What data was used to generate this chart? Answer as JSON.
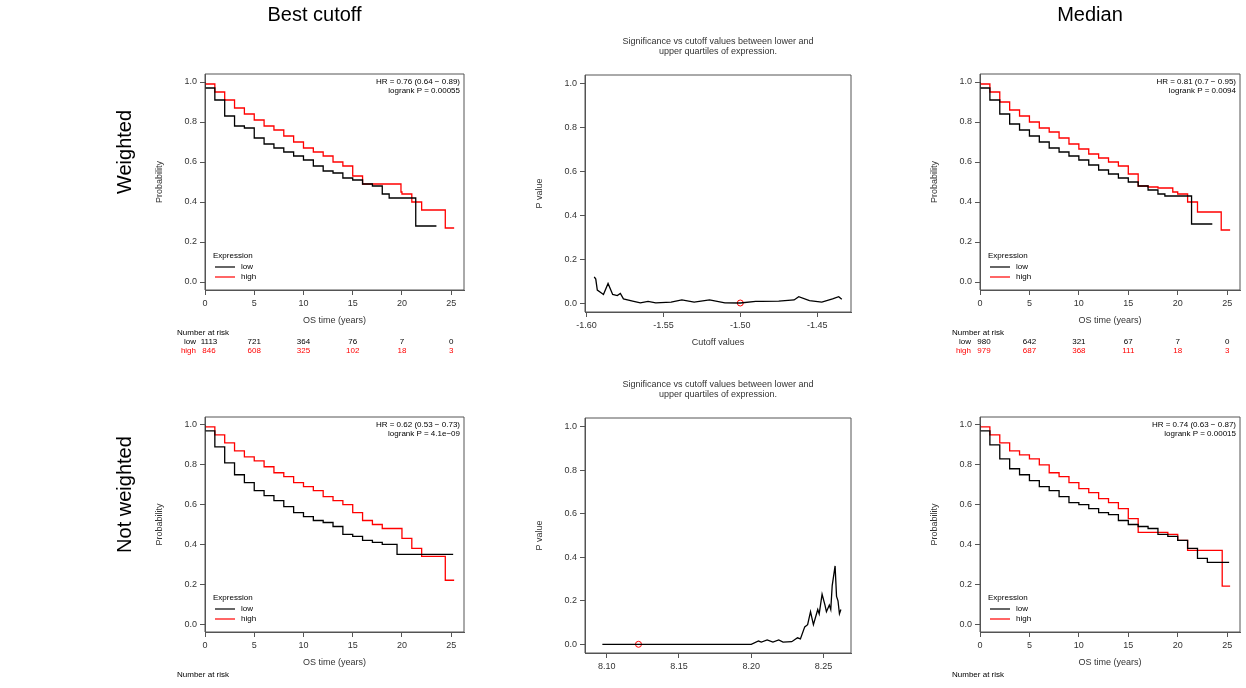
{
  "chart_data": [
    {
      "type": "step",
      "title": "Best cutoff",
      "subtitle": "Weighted",
      "xlabel": "OS time (years)",
      "ylabel": "Probability",
      "legend": "bottom left",
      "legend_title": "Expression",
      "xlim": [
        0,
        26.3
      ],
      "ylim": [
        -0.04,
        1.04
      ],
      "xticks": [
        0,
        5,
        10,
        15,
        20,
        25
      ],
      "yticks": [
        {
          "value": 0,
          "label": "0.0"
        },
        {
          "value": 0.2,
          "label": "0.2"
        },
        {
          "value": 0.4,
          "label": "0.4"
        },
        {
          "value": 0.6,
          "label": "0.6"
        },
        {
          "value": 0.8,
          "label": "0.8"
        },
        {
          "value": 1,
          "label": "1.0"
        }
      ],
      "grid": false,
      "marker": "none",
      "annotations": [
        "HR = 0.76 (0.64 − 0.89)",
        "logrank P = 0.00055",
        "Number at risk",
        "low 1113 721 364 76 7 0",
        "high 846 608 325 102 18 3"
      ],
      "series": [
        {
          "name": "low",
          "color": "#000000",
          "x": [
            0,
            1,
            2,
            3,
            4,
            5,
            6,
            7,
            8,
            9,
            10,
            11,
            12,
            13,
            14,
            15,
            16,
            17,
            18,
            18.7,
            19,
            21.4,
            21.4,
            23.5
          ],
          "values": [
            1,
            0.97,
            0.91,
            0.83,
            0.78,
            0.77,
            0.72,
            0.69,
            0.67,
            0.65,
            0.63,
            0.61,
            0.58,
            0.555,
            0.545,
            0.52,
            0.51,
            0.49,
            0.48,
            0.44,
            0.42,
            0.42,
            0.28,
            0.28
          ]
        },
        {
          "name": "high",
          "color": "#ff0000",
          "x": [
            0,
            1,
            2,
            3,
            4,
            5,
            6,
            7,
            8,
            9,
            10,
            11,
            12,
            13,
            14,
            15,
            16,
            17,
            18,
            19.9,
            20,
            21,
            22,
            23,
            24.4,
            24.4,
            25.3
          ],
          "values": [
            1,
            0.99,
            0.95,
            0.91,
            0.87,
            0.84,
            0.81,
            0.78,
            0.76,
            0.73,
            0.7,
            0.67,
            0.65,
            0.63,
            0.6,
            0.58,
            0.53,
            0.49,
            0.49,
            0.49,
            0.45,
            0.44,
            0.4,
            0.36,
            0.36,
            0.27,
            0.27
          ]
        }
      ]
    },
    {
      "type": "line",
      "title": "Significance vs cutoff values between lower and\nupper quartiles of expression.",
      "xlabel": "Cutoff values",
      "ylabel": "P value",
      "xlim": [
        -1.601,
        -1.428
      ],
      "ylim": [
        -0.04,
        1.04
      ],
      "xticks": [
        {
          "value": -1.6,
          "label": "-1.60"
        },
        {
          "value": -1.55,
          "label": "-1.55"
        },
        {
          "value": -1.5,
          "label": "-1.50"
        },
        {
          "value": -1.45,
          "label": "-1.45"
        }
      ],
      "yticks": [
        {
          "value": 0,
          "label": "0.0"
        },
        {
          "value": 0.2,
          "label": "0.2"
        },
        {
          "value": 0.4,
          "label": "0.4"
        },
        {
          "value": 0.6,
          "label": "0.6"
        },
        {
          "value": 0.8,
          "label": "0.8"
        },
        {
          "value": 1,
          "label": "1.0"
        }
      ],
      "grid": false,
      "series": [
        {
          "color": "#000000",
          "x": [
            -1.595,
            -1.594,
            -1.593,
            -1.591,
            -1.589,
            -1.586,
            -1.583,
            -1.58,
            -1.578,
            -1.576,
            -1.57,
            -1.565,
            -1.56,
            -1.555,
            -1.545,
            -1.538,
            -1.53,
            -1.52,
            -1.51,
            -1.5,
            -1.49,
            -1.475,
            -1.465,
            -1.462,
            -1.455,
            -1.447,
            -1.44,
            -1.436,
            -1.434
          ],
          "values": [
            0.12,
            0.11,
            0.06,
            0.05,
            0.04,
            0.09,
            0.04,
            0.035,
            0.045,
            0.02,
            0.01,
            0.002,
            0.008,
            0.002,
            0.005,
            0.015,
            0.005,
            0.015,
            0.002,
            0.001,
            0.008,
            0.01,
            0.015,
            0.03,
            0.012,
            0.005,
            0.02,
            0.03,
            0.018
          ]
        },
        {
          "type": "scatter",
          "marker": "circle",
          "color": "#ff0000",
          "x": [
            -1.5
          ],
          "values": [
            0.001
          ]
        }
      ]
    },
    {
      "type": "step",
      "title": "Median",
      "xlabel": "OS time (years)",
      "ylabel": "Probability",
      "legend": "bottom left",
      "legend_title": "Expression",
      "xlim": [
        0,
        26.3
      ],
      "ylim": [
        -0.04,
        1.04
      ],
      "xticks": [
        0,
        5,
        10,
        15,
        20,
        25
      ],
      "yticks": [
        {
          "value": 0,
          "label": "0.0"
        },
        {
          "value": 0.2,
          "label": "0.2"
        },
        {
          "value": 0.4,
          "label": "0.4"
        },
        {
          "value": 0.6,
          "label": "0.6"
        },
        {
          "value": 0.8,
          "label": "0.8"
        },
        {
          "value": 1,
          "label": "1.0"
        }
      ],
      "grid": false,
      "marker": "none",
      "annotations": [
        "HR = 0.81 (0.7 − 0.95)",
        "logrank P = 0.0094",
        "Number at risk",
        "low 980 642 321 67 7 0",
        "high 979 687 368 111 18 3"
      ],
      "series": [
        {
          "name": "low",
          "color": "#000000",
          "x": [
            0,
            1,
            2,
            3,
            4,
            5,
            6,
            7,
            8,
            9,
            10,
            11,
            12,
            13,
            14,
            15,
            16,
            17,
            18,
            18.7,
            20.5,
            21.4,
            21.4,
            23.5
          ],
          "values": [
            1,
            0.97,
            0.91,
            0.84,
            0.79,
            0.76,
            0.73,
            0.7,
            0.67,
            0.65,
            0.63,
            0.61,
            0.585,
            0.56,
            0.54,
            0.52,
            0.5,
            0.48,
            0.46,
            0.44,
            0.43,
            0.43,
            0.29,
            0.29
          ]
        },
        {
          "name": "high",
          "color": "#ff0000",
          "x": [
            0,
            1,
            2,
            3,
            4,
            5,
            6,
            7,
            8,
            9,
            10,
            11,
            12,
            13,
            14,
            15,
            16,
            17,
            18,
            19.5,
            20,
            21,
            22,
            23,
            24.4,
            24.4,
            25.3
          ],
          "values": [
            1,
            0.99,
            0.95,
            0.9,
            0.86,
            0.83,
            0.8,
            0.77,
            0.75,
            0.72,
            0.69,
            0.665,
            0.64,
            0.62,
            0.6,
            0.58,
            0.54,
            0.48,
            0.475,
            0.47,
            0.45,
            0.44,
            0.4,
            0.35,
            0.35,
            0.26,
            0.26
          ]
        }
      ]
    },
    {
      "type": "step",
      "subtitle": "Not weighted",
      "xlabel": "OS time (years)",
      "ylabel": "Probability",
      "legend": "bottom left",
      "legend_title": "Expression",
      "xlim": [
        0,
        26.3
      ],
      "ylim": [
        -0.04,
        1.04
      ],
      "xticks": [
        0,
        5,
        10,
        15,
        20,
        25
      ],
      "yticks": [
        {
          "value": 0,
          "label": "0.0"
        },
        {
          "value": 0.2,
          "label": "0.2"
        },
        {
          "value": 0.4,
          "label": "0.4"
        },
        {
          "value": 0.6,
          "label": "0.6"
        },
        {
          "value": 0.8,
          "label": "0.8"
        },
        {
          "value": 1,
          "label": "1.0"
        }
      ],
      "grid": false,
      "marker": "none",
      "annotations": [
        "HR = 0.62 (0.53 − 0.73)",
        "logrank P = 4.1e−09",
        "Number at risk"
      ],
      "series": [
        {
          "name": "low",
          "color": "#000000",
          "x": [
            0,
            1,
            2,
            3,
            4,
            5,
            6,
            7,
            8,
            9,
            10,
            11,
            12,
            13,
            14,
            15,
            16,
            17,
            18,
            19.5,
            20,
            25.2
          ],
          "values": [
            1,
            0.97,
            0.89,
            0.81,
            0.75,
            0.71,
            0.67,
            0.645,
            0.62,
            0.59,
            0.56,
            0.54,
            0.52,
            0.51,
            0.49,
            0.45,
            0.44,
            0.42,
            0.41,
            0.4,
            0.35,
            0.35
          ]
        },
        {
          "name": "high",
          "color": "#ff0000",
          "x": [
            0,
            1,
            2,
            3,
            4,
            5,
            6,
            7,
            8,
            9,
            10,
            11,
            12,
            13,
            14,
            15,
            16,
            17,
            18,
            19,
            20,
            21,
            22,
            23,
            24.4,
            24.4,
            25.3
          ],
          "values": [
            1,
            0.99,
            0.95,
            0.91,
            0.87,
            0.84,
            0.82,
            0.79,
            0.76,
            0.74,
            0.71,
            0.69,
            0.67,
            0.64,
            0.62,
            0.6,
            0.56,
            0.52,
            0.5,
            0.48,
            0.48,
            0.43,
            0.38,
            0.34,
            0.34,
            0.22,
            0.22
          ]
        }
      ]
    },
    {
      "type": "line",
      "title": "Significance vs cutoff values between lower and\nupper quartiles of expression.",
      "ylabel": "P value",
      "xlim": [
        8.085,
        8.269
      ],
      "ylim": [
        -0.04,
        1.04
      ],
      "xticks": [
        {
          "value": 8.1,
          "label": "8.10"
        },
        {
          "value": 8.15,
          "label": "8.15"
        },
        {
          "value": 8.2,
          "label": "8.20"
        },
        {
          "value": 8.25,
          "label": "8.25"
        }
      ],
      "yticks": [
        {
          "value": 0,
          "label": "0.0"
        },
        {
          "value": 0.2,
          "label": "0.2"
        },
        {
          "value": 0.4,
          "label": "0.4"
        },
        {
          "value": 0.6,
          "label": "0.6"
        },
        {
          "value": 0.8,
          "label": "0.8"
        },
        {
          "value": 1,
          "label": "1.0"
        }
      ],
      "grid": false,
      "series": [
        {
          "color": "#000000",
          "x": [
            8.097,
            8.2,
            8.205,
            8.207,
            8.211,
            8.215,
            8.219,
            8.222,
            8.228,
            8.232,
            8.234,
            8.237,
            8.239,
            8.241,
            8.243,
            8.246,
            8.247,
            8.249,
            8.251,
            8.252,
            8.254,
            8.255,
            8.256,
            8.258,
            8.259,
            8.26,
            8.261,
            8.262
          ],
          "values": [
            0,
            0,
            0.015,
            0.01,
            0.02,
            0.01,
            0.02,
            0.01,
            0.012,
            0.03,
            0.025,
            0.08,
            0.09,
            0.15,
            0.09,
            0.16,
            0.14,
            0.23,
            0.18,
            0.15,
            0.18,
            0.16,
            0.27,
            0.36,
            0.22,
            0.2,
            0.14,
            0.16
          ]
        },
        {
          "type": "scatter",
          "marker": "circle",
          "color": "#ff0000",
          "x": [
            8.122
          ],
          "values": [
            0
          ]
        }
      ]
    },
    {
      "type": "step",
      "xlabel": "OS time (years)",
      "ylabel": "Probability",
      "legend": "bottom left",
      "legend_title": "Expression",
      "xlim": [
        0,
        26.3
      ],
      "ylim": [
        -0.04,
        1.04
      ],
      "xticks": [
        0,
        5,
        10,
        15,
        20,
        25
      ],
      "yticks": [
        {
          "value": 0,
          "label": "0.0"
        },
        {
          "value": 0.2,
          "label": "0.2"
        },
        {
          "value": 0.4,
          "label": "0.4"
        },
        {
          "value": 0.6,
          "label": "0.6"
        },
        {
          "value": 0.8,
          "label": "0.8"
        },
        {
          "value": 1,
          "label": "1.0"
        }
      ],
      "grid": false,
      "marker": "none",
      "annotations": [
        "HR = 0.74 (0.63 − 0.87)",
        "logrank P = 0.00015",
        "Number at risk"
      ],
      "series": [
        {
          "name": "low",
          "color": "#000000",
          "x": [
            0,
            1,
            2,
            3,
            4,
            5,
            6,
            7,
            8,
            9,
            10,
            11,
            12,
            13,
            14,
            15,
            16,
            17,
            18,
            19,
            20,
            21,
            22,
            23,
            25.2
          ],
          "values": [
            1,
            0.97,
            0.9,
            0.83,
            0.78,
            0.75,
            0.72,
            0.69,
            0.67,
            0.64,
            0.61,
            0.6,
            0.58,
            0.56,
            0.55,
            0.52,
            0.5,
            0.49,
            0.48,
            0.45,
            0.44,
            0.42,
            0.38,
            0.33,
            0.31
          ]
        },
        {
          "name": "high",
          "color": "#ff0000",
          "x": [
            0,
            1,
            2,
            3,
            4,
            5,
            6,
            7,
            8,
            9,
            10,
            11,
            12,
            13,
            14,
            15,
            16,
            17,
            19,
            20,
            21,
            22,
            24.5,
            24.5,
            25.3
          ],
          "values": [
            1,
            0.99,
            0.95,
            0.91,
            0.87,
            0.85,
            0.83,
            0.8,
            0.76,
            0.74,
            0.71,
            0.68,
            0.66,
            0.63,
            0.61,
            0.58,
            0.53,
            0.46,
            0.46,
            0.45,
            0.42,
            0.37,
            0.37,
            0.19,
            0.19
          ]
        }
      ]
    }
  ]
}
